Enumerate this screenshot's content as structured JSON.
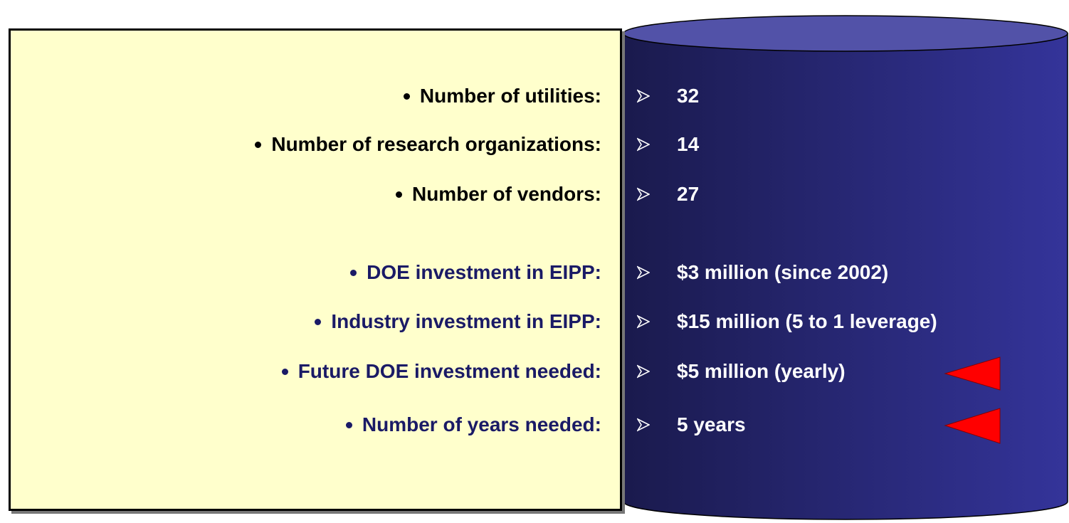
{
  "rows": [
    {
      "label": "Number of utilities:",
      "value": "32"
    },
    {
      "label": "Number of research organizations:",
      "value": "14"
    },
    {
      "label": "Number of vendors:",
      "value": "27"
    },
    {
      "label": "DOE investment in EIPP:",
      "value": "$3 million (since 2002)"
    },
    {
      "label": "Industry investment in EIPP:",
      "value": "$15 million (5 to 1 leverage)"
    },
    {
      "label": "Future DOE investment needed:",
      "value": "$5 million (yearly)"
    },
    {
      "label": "Number of years needed:",
      "value": "5 years"
    }
  ]
}
